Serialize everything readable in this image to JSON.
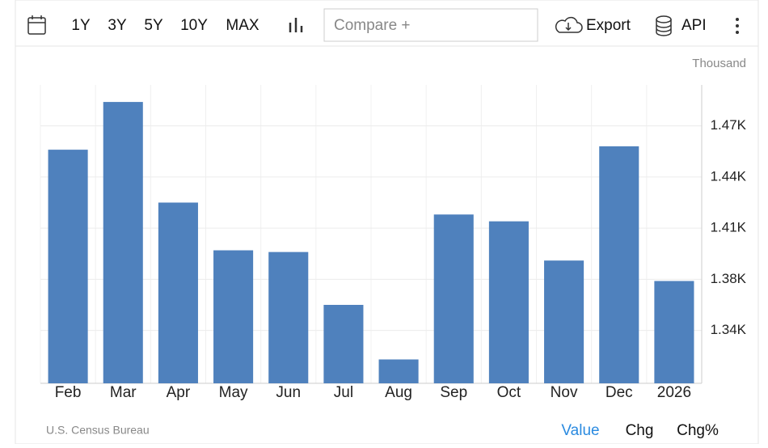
{
  "toolbar": {
    "ranges": [
      "1Y",
      "3Y",
      "5Y",
      "10Y",
      "MAX"
    ],
    "compare": "Compare +",
    "export": "Export",
    "api": "API"
  },
  "chart_data": {
    "type": "bar",
    "unit": "Thousand",
    "categories": [
      "Feb",
      "Mar",
      "Apr",
      "May",
      "Jun",
      "Jul",
      "Aug",
      "Sep",
      "Oct",
      "Nov",
      "Dec",
      "2026"
    ],
    "values": [
      1451,
      1479,
      1420,
      1392,
      1391,
      1360,
      1328,
      1413,
      1409,
      1386,
      1453,
      1374
    ],
    "color": "#4f81bd",
    "ylim": [
      1314,
      1489
    ],
    "yticks": [
      {
        "value": 1345,
        "label": "1.34K"
      },
      {
        "value": 1375,
        "label": "1.38K"
      },
      {
        "value": 1405,
        "label": "1.41K"
      },
      {
        "value": 1435,
        "label": "1.44K"
      },
      {
        "value": 1465,
        "label": "1.47K"
      }
    ],
    "grid": true
  },
  "footer": {
    "source": "U.S. Census Bureau",
    "tabs": [
      "Value",
      "Chg",
      "Chg%"
    ]
  }
}
